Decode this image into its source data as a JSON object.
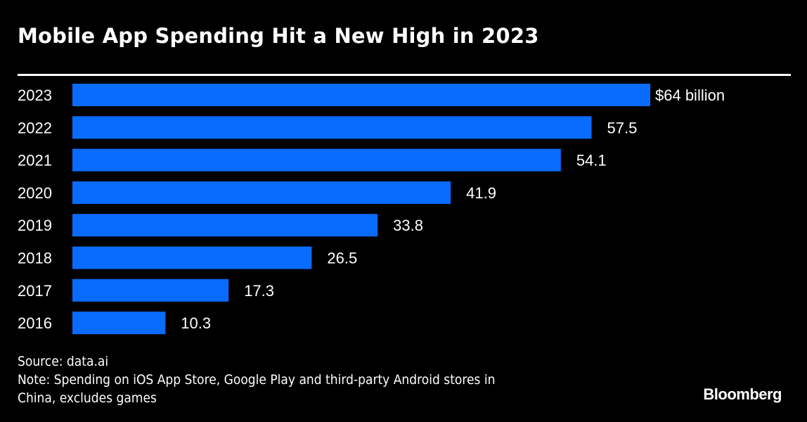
{
  "header": {
    "title": "Mobile App Spending Hit a New High in 2023"
  },
  "chart_data": {
    "type": "bar",
    "orientation": "horizontal",
    "title": "Mobile App Spending Hit a New High in 2023",
    "xlabel": "",
    "ylabel": "",
    "unit": "$ billion",
    "categories": [
      "2023",
      "2022",
      "2021",
      "2020",
      "2019",
      "2018",
      "2017",
      "2016"
    ],
    "values": [
      64,
      57.5,
      54.1,
      41.9,
      33.8,
      26.5,
      17.3,
      10.3
    ],
    "data_labels": [
      "$64 billion",
      "57.5",
      "54.1",
      "41.9",
      "33.8",
      "26.5",
      "17.3",
      "10.3"
    ],
    "xlim": [
      0,
      64
    ],
    "grid": false,
    "legend": "none",
    "bar_color": "#0a6cff"
  },
  "footer": {
    "source": "Source: data.ai",
    "note_line1": "Note: Spending on iOS App Store, Google Play and third-party Android stores in",
    "note_line2": "China, excludes games",
    "brand": "Bloomberg"
  }
}
